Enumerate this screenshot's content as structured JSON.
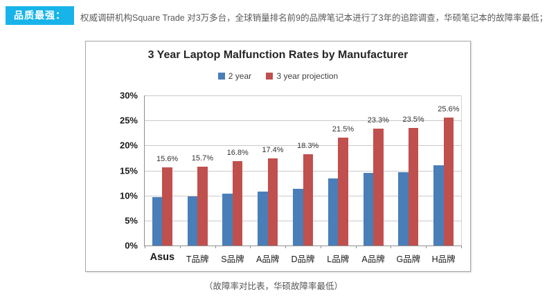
{
  "header": {
    "badge_label": "品质最强：",
    "badge_color": "#18b4e9",
    "text": "权威调研机构Square Trade 对3万多台，全球销量排名前9的品牌笔记本进行了3年的追踪调查，华硕笔记本的故障率最低；"
  },
  "chart_data": {
    "type": "bar",
    "title": "3 Year Laptop Malfunction Rates by Manufacturer",
    "categories": [
      "Asus",
      "T品牌",
      "S品牌",
      "A品牌",
      "D品牌",
      "L品牌",
      "A品牌",
      "G品牌",
      "H品牌"
    ],
    "series": [
      {
        "name": "2 year",
        "color": "#4a7eb8",
        "values": [
          9.7,
          9.8,
          10.4,
          10.8,
          11.4,
          13.4,
          14.5,
          14.7,
          16.0
        ]
      },
      {
        "name": "3 year projection",
        "color": "#c0504d",
        "values": [
          15.6,
          15.7,
          16.8,
          17.4,
          18.3,
          21.5,
          23.3,
          23.5,
          25.6
        ],
        "value_labels": [
          "15.6%",
          "15.7%",
          "16.8%",
          "17.4%",
          "18.3%",
          "21.5%",
          "23.3%",
          "23.5%",
          "25.6%"
        ]
      }
    ],
    "xlabel": "",
    "ylabel": "",
    "ylim": [
      0,
      30
    ],
    "yticks": [
      "0%",
      "5%",
      "10%",
      "15%",
      "20%",
      "25%",
      "30%"
    ],
    "grid": true,
    "legend_position": "top"
  },
  "caption": "（故障率对比表，华硕故障率最低）"
}
